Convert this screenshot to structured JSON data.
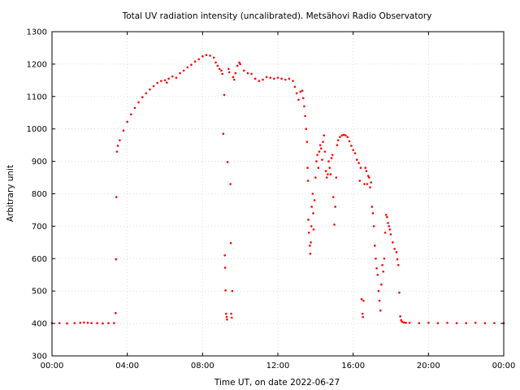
{
  "chart_data": {
    "type": "scatter",
    "title": "Total UV radiation intensity (uncalibrated). Metsähovi Radio Observatory",
    "xlabel": "Time UT, on date 2022-06-27",
    "ylabel": "Arbitrary unit",
    "x_unit": "hours UT",
    "xlim": [
      0,
      24
    ],
    "ylim": [
      300,
      1300
    ],
    "x_ticks": [
      {
        "value": 0,
        "label": "00:00"
      },
      {
        "value": 4,
        "label": "04:00"
      },
      {
        "value": 8,
        "label": "08:00"
      },
      {
        "value": 12,
        "label": "12:00"
      },
      {
        "value": 16,
        "label": "16:00"
      },
      {
        "value": 20,
        "label": "20:00"
      },
      {
        "value": 24,
        "label": "00:00"
      }
    ],
    "y_ticks": [
      300,
      400,
      500,
      600,
      700,
      800,
      900,
      1000,
      1100,
      1200,
      1300
    ],
    "grid": true,
    "grid_style": "dotted",
    "legend": "none",
    "marker_color": "#ff0000",
    "series": [
      {
        "points": [
          [
            0.0,
            401
          ],
          [
            0.4,
            401
          ],
          [
            0.8,
            400
          ],
          [
            1.2,
            401
          ],
          [
            1.5,
            402
          ],
          [
            1.7,
            403
          ],
          [
            1.9,
            402
          ],
          [
            2.1,
            401
          ],
          [
            2.4,
            401
          ],
          [
            2.7,
            400
          ],
          [
            3.0,
            401
          ],
          [
            3.3,
            401
          ],
          [
            3.38,
            432
          ],
          [
            3.4,
            598
          ],
          [
            3.42,
            790
          ],
          [
            3.45,
            930
          ],
          [
            3.5,
            948
          ],
          [
            3.6,
            965
          ],
          [
            3.8,
            995
          ],
          [
            4.0,
            1022
          ],
          [
            4.2,
            1045
          ],
          [
            4.4,
            1065
          ],
          [
            4.6,
            1082
          ],
          [
            4.8,
            1098
          ],
          [
            5.0,
            1110
          ],
          [
            5.2,
            1122
          ],
          [
            5.4,
            1132
          ],
          [
            5.6,
            1142
          ],
          [
            5.8,
            1148
          ],
          [
            6.0,
            1150
          ],
          [
            6.1,
            1143
          ],
          [
            6.2,
            1155
          ],
          [
            6.4,
            1162
          ],
          [
            6.6,
            1158
          ],
          [
            6.8,
            1172
          ],
          [
            7.0,
            1180
          ],
          [
            7.2,
            1190
          ],
          [
            7.4,
            1198
          ],
          [
            7.6,
            1208
          ],
          [
            7.8,
            1215
          ],
          [
            8.0,
            1224
          ],
          [
            8.2,
            1228
          ],
          [
            8.4,
            1226
          ],
          [
            8.6,
            1220
          ],
          [
            8.7,
            1205
          ],
          [
            8.8,
            1195
          ],
          [
            8.9,
            1185
          ],
          [
            9.0,
            1180
          ],
          [
            9.05,
            1170
          ],
          [
            9.1,
            985
          ],
          [
            9.15,
            1105
          ],
          [
            9.18,
            610
          ],
          [
            9.2,
            572
          ],
          [
            9.22,
            502
          ],
          [
            9.25,
            430
          ],
          [
            9.28,
            420
          ],
          [
            9.3,
            412
          ],
          [
            9.33,
            898
          ],
          [
            9.38,
            1185
          ],
          [
            9.42,
            1175
          ],
          [
            9.48,
            830
          ],
          [
            9.5,
            648
          ],
          [
            9.52,
            430
          ],
          [
            9.55,
            418
          ],
          [
            9.58,
            500
          ],
          [
            9.62,
            1160
          ],
          [
            9.68,
            1152
          ],
          [
            9.75,
            1172
          ],
          [
            9.85,
            1195
          ],
          [
            9.95,
            1205
          ],
          [
            10.0,
            1200
          ],
          [
            10.2,
            1180
          ],
          [
            10.4,
            1172
          ],
          [
            10.6,
            1170
          ],
          [
            10.8,
            1155
          ],
          [
            11.0,
            1148
          ],
          [
            11.2,
            1152
          ],
          [
            11.4,
            1160
          ],
          [
            11.6,
            1158
          ],
          [
            11.8,
            1155
          ],
          [
            12.0,
            1158
          ],
          [
            12.2,
            1155
          ],
          [
            12.4,
            1152
          ],
          [
            12.6,
            1155
          ],
          [
            12.8,
            1148
          ],
          [
            12.9,
            1130
          ],
          [
            13.0,
            1110
          ],
          [
            13.1,
            1090
          ],
          [
            13.2,
            1115
          ],
          [
            13.3,
            1118
          ],
          [
            13.35,
            1095
          ],
          [
            13.4,
            1070
          ],
          [
            13.45,
            1040
          ],
          [
            13.5,
            1000
          ],
          [
            13.55,
            960
          ],
          [
            13.58,
            880
          ],
          [
            13.6,
            840
          ],
          [
            13.62,
            720
          ],
          [
            13.65,
            680
          ],
          [
            13.7,
            640
          ],
          [
            13.72,
            615
          ],
          [
            13.75,
            650
          ],
          [
            13.78,
            700
          ],
          [
            13.8,
            760
          ],
          [
            13.85,
            800
          ],
          [
            13.88,
            740
          ],
          [
            13.9,
            690
          ],
          [
            13.95,
            780
          ],
          [
            14.0,
            850
          ],
          [
            14.05,
            900
          ],
          [
            14.1,
            920
          ],
          [
            14.15,
            880
          ],
          [
            14.2,
            930
          ],
          [
            14.25,
            950
          ],
          [
            14.3,
            940
          ],
          [
            14.35,
            905
          ],
          [
            14.4,
            960
          ],
          [
            14.45,
            980
          ],
          [
            14.5,
            930
          ],
          [
            14.55,
            870
          ],
          [
            14.6,
            850
          ],
          [
            14.65,
            860
          ],
          [
            14.7,
            900
          ],
          [
            14.75,
            880
          ],
          [
            14.8,
            860
          ],
          [
            14.85,
            910
          ],
          [
            14.9,
            920
          ],
          [
            14.95,
            790
          ],
          [
            15.0,
            705
          ],
          [
            15.05,
            760
          ],
          [
            15.1,
            850
          ],
          [
            15.15,
            950
          ],
          [
            15.2,
            965
          ],
          [
            15.3,
            975
          ],
          [
            15.4,
            980
          ],
          [
            15.5,
            982
          ],
          [
            15.6,
            980
          ],
          [
            15.7,
            975
          ],
          [
            15.8,
            962
          ],
          [
            15.9,
            948
          ],
          [
            16.0,
            935
          ],
          [
            16.1,
            925
          ],
          [
            16.2,
            905
          ],
          [
            16.3,
            895
          ],
          [
            16.35,
            840
          ],
          [
            16.4,
            880
          ],
          [
            16.45,
            475
          ],
          [
            16.5,
            430
          ],
          [
            16.52,
            420
          ],
          [
            16.55,
            470
          ],
          [
            16.6,
            830
          ],
          [
            16.65,
            880
          ],
          [
            16.7,
            870
          ],
          [
            16.75,
            830
          ],
          [
            16.8,
            855
          ],
          [
            16.85,
            850
          ],
          [
            16.9,
            820
          ],
          [
            16.95,
            835
          ],
          [
            17.0,
            760
          ],
          [
            17.05,
            740
          ],
          [
            17.1,
            700
          ],
          [
            17.15,
            640
          ],
          [
            17.2,
            600
          ],
          [
            17.25,
            570
          ],
          [
            17.3,
            550
          ],
          [
            17.35,
            500
          ],
          [
            17.4,
            470
          ],
          [
            17.45,
            440
          ],
          [
            17.5,
            520
          ],
          [
            17.55,
            580
          ],
          [
            17.6,
            560
          ],
          [
            17.65,
            600
          ],
          [
            17.7,
            680
          ],
          [
            17.75,
            735
          ],
          [
            17.8,
            728
          ],
          [
            17.85,
            710
          ],
          [
            17.9,
            700
          ],
          [
            17.95,
            690
          ],
          [
            18.0,
            675
          ],
          [
            18.1,
            650
          ],
          [
            18.2,
            630
          ],
          [
            18.3,
            620
          ],
          [
            18.35,
            598
          ],
          [
            18.4,
            580
          ],
          [
            18.45,
            495
          ],
          [
            18.5,
            422
          ],
          [
            18.55,
            410
          ],
          [
            18.6,
            405
          ],
          [
            18.7,
            403
          ],
          [
            18.8,
            402
          ],
          [
            19.0,
            402
          ],
          [
            19.5,
            401
          ],
          [
            20.0,
            402
          ],
          [
            20.5,
            401
          ],
          [
            21.0,
            402
          ],
          [
            21.5,
            401
          ],
          [
            22.0,
            401
          ],
          [
            22.5,
            402
          ],
          [
            23.0,
            401
          ],
          [
            23.5,
            401
          ],
          [
            24.0,
            401
          ]
        ]
      }
    ]
  }
}
